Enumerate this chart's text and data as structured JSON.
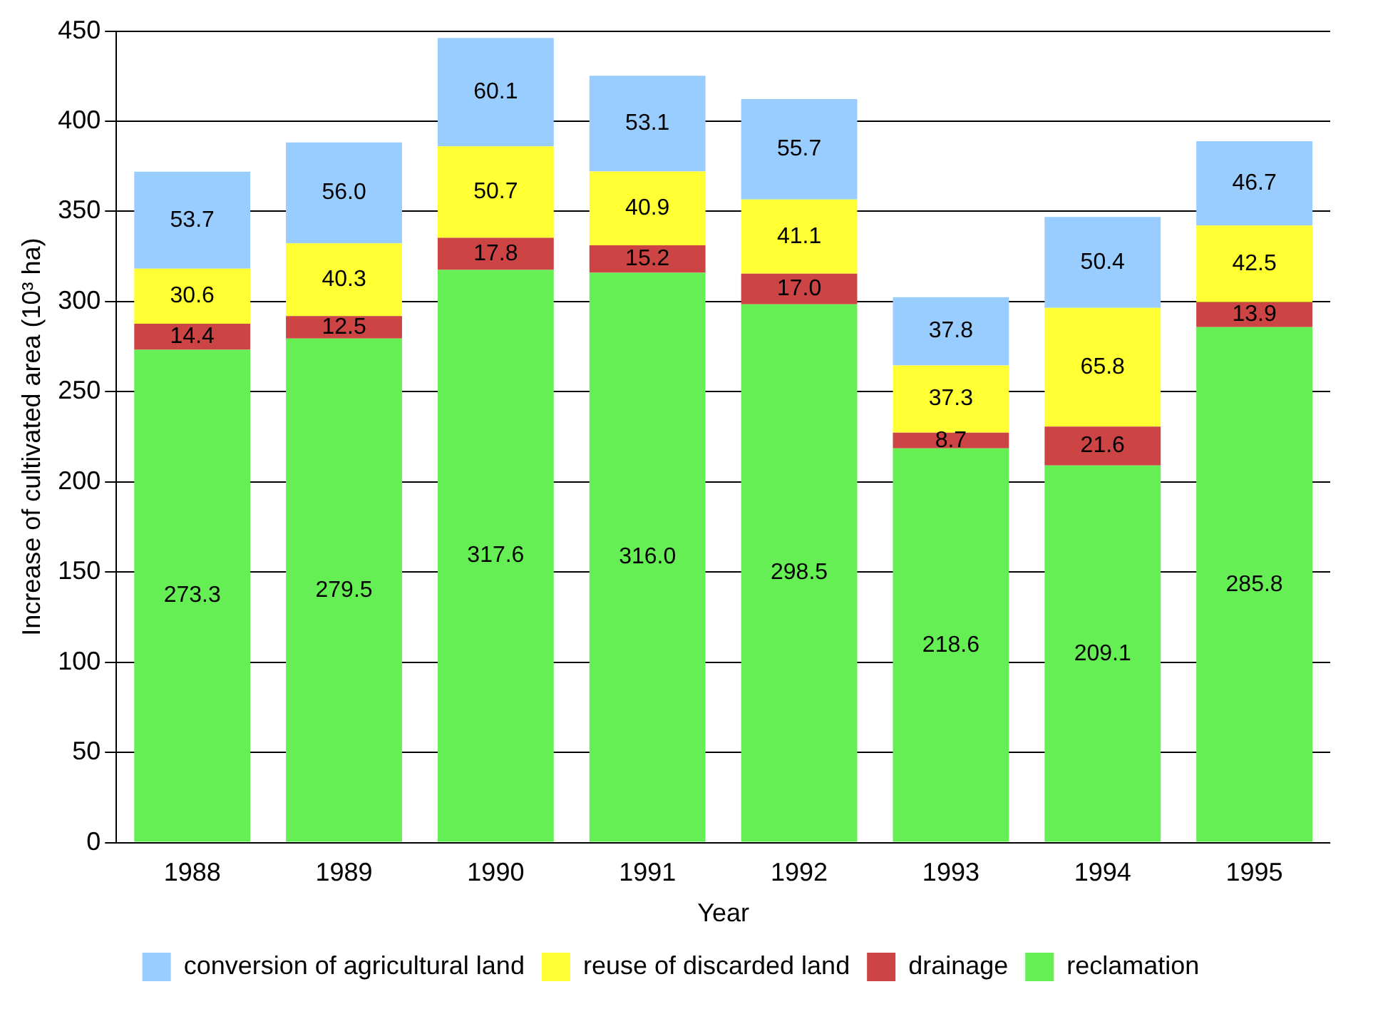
{
  "chart_data": {
    "type": "bar",
    "stacked": true,
    "xlabel": "Year",
    "ylabel": "Increase of cultivated area (10³ ha)",
    "categories": [
      "1988",
      "1989",
      "1990",
      "1991",
      "1992",
      "1993",
      "1994",
      "1995"
    ],
    "series": [
      {
        "name": "reclamation",
        "color": "#66ee55",
        "values": [
          273.3,
          279.5,
          317.6,
          316.0,
          298.5,
          218.6,
          209.1,
          285.8
        ],
        "value_labels": [
          "273.3",
          "279.5",
          "317.6",
          "316.0",
          "298.5",
          "218.6",
          "209.1",
          "285.8"
        ]
      },
      {
        "name": "drainage",
        "color": "#cc4444",
        "values": [
          14.4,
          12.5,
          17.8,
          15.2,
          17.0,
          8.7,
          21.6,
          13.9
        ],
        "value_labels": [
          "14.4",
          "12.5",
          "17.8",
          "15.2",
          "17.0",
          "8.7",
          "21.6",
          "13.9"
        ]
      },
      {
        "name": "reuse of discarded land",
        "color": "#ffff33",
        "values": [
          30.6,
          40.3,
          50.7,
          40.9,
          41.1,
          37.3,
          65.8,
          42.5
        ],
        "value_labels": [
          "30.6",
          "40.3",
          "50.7",
          "40.9",
          "41.1",
          "37.3",
          "65.8",
          "42.5"
        ]
      },
      {
        "name": "conversion of agricultural land",
        "color": "#99ccff",
        "values": [
          53.7,
          56.0,
          60.1,
          53.1,
          55.7,
          37.8,
          50.4,
          46.7
        ],
        "value_labels": [
          "53.7",
          "56.0",
          "60.1",
          "53.1",
          "55.7",
          "37.8",
          "50.4",
          "46.7"
        ]
      }
    ],
    "ylim": [
      0,
      450
    ],
    "yticks": [
      0,
      50,
      100,
      150,
      200,
      250,
      300,
      350,
      400,
      450
    ],
    "grid": "y",
    "legend": "bottom"
  }
}
